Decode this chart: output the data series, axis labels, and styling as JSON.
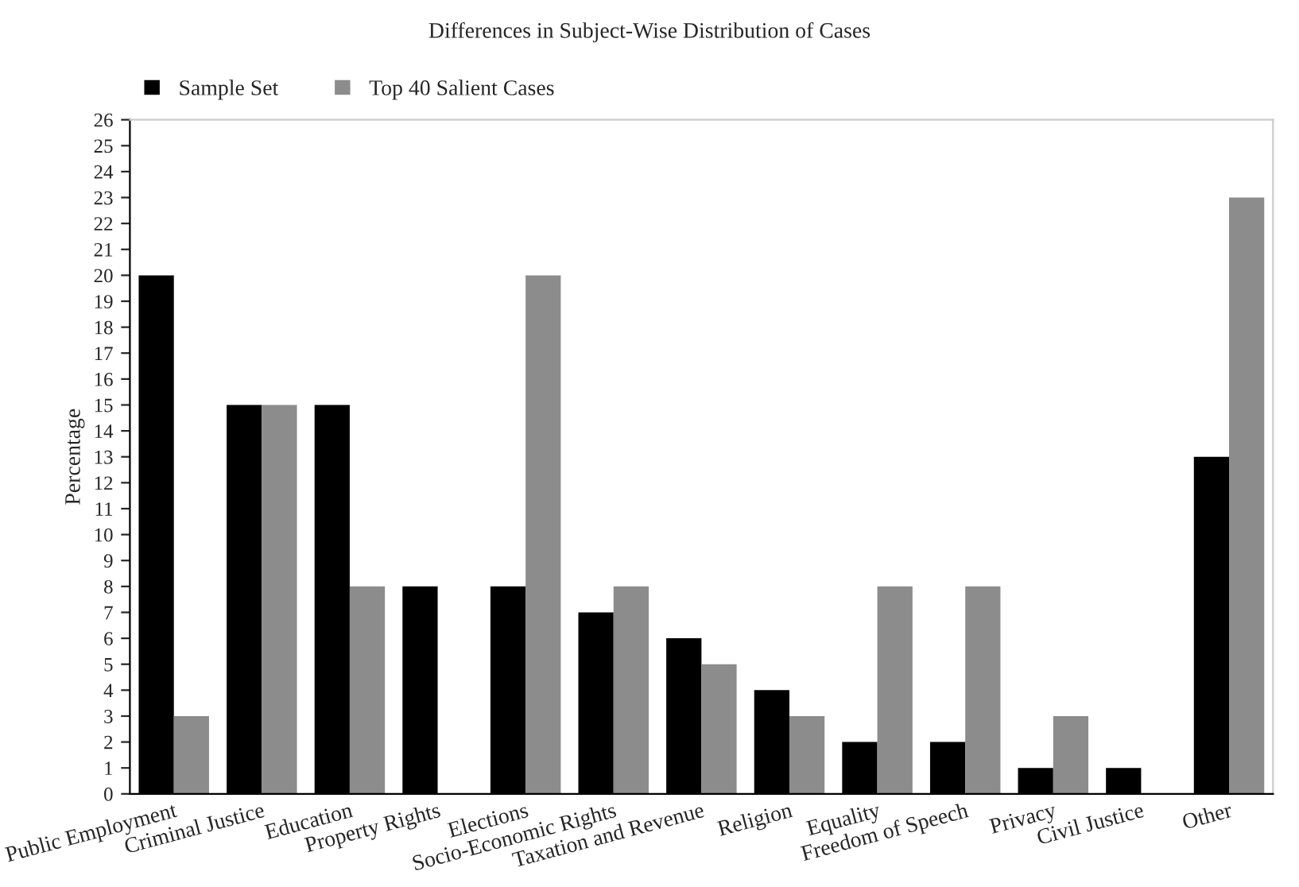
{
  "chart_data": {
    "type": "bar",
    "title": "Differences in Subject-Wise Distribution of Cases",
    "ylabel": "Percentage",
    "categories": [
      "Public Employment",
      "Criminal Justice",
      "Education",
      "Property Rights",
      "Elections",
      "Socio-Economic Rights",
      "Taxation and Revenue",
      "Religion",
      "Equality",
      "Freedom of Speech",
      "Privacy",
      "Civil Justice",
      "Other"
    ],
    "series": [
      {
        "name": "Sample Set",
        "color": "#000000",
        "values": [
          20,
          15,
          15,
          8,
          8,
          7,
          6,
          4,
          2,
          2,
          1,
          1,
          13
        ]
      },
      {
        "name": "Top 40 Salient Cases",
        "color": "#8c8c8c",
        "values": [
          3,
          15,
          8,
          0,
          20,
          8,
          5,
          3,
          8,
          8,
          3,
          0,
          23
        ]
      }
    ],
    "ylim": [
      0,
      26
    ],
    "yticks": [
      0,
      1,
      2,
      3,
      4,
      5,
      6,
      7,
      8,
      9,
      10,
      11,
      12,
      13,
      14,
      15,
      16,
      17,
      18,
      19,
      20,
      21,
      22,
      23,
      24,
      25,
      26
    ],
    "grid": false,
    "legend": "top left"
  }
}
